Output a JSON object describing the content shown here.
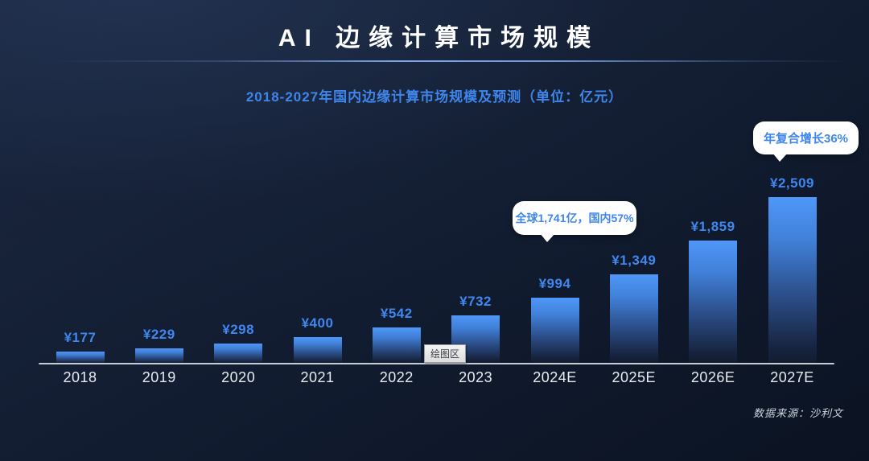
{
  "title": "AI 边缘计算市场规模",
  "subtitle": "2018-2027年国内边缘计算市场规模及预测（单位：亿元）",
  "source": "数据来源：沙利文",
  "plot_area_tooltip": "绘图区",
  "callouts": {
    "cagr": "年复合增长36%",
    "global_share": "全球1,741亿，国内57%"
  },
  "colors": {
    "background_top": "#1c2942",
    "background_bottom": "#0b1322",
    "accent_blue": "#3f86ec",
    "bar_gradient_top": "#4f97f8",
    "bar_gradient_bottom": "#121c30",
    "axis_line": "#c6ccd4",
    "year_label": "#e8ebf0",
    "callout_background": "#ffffff",
    "title_text": "#ffffff"
  },
  "chart_data": {
    "type": "bar",
    "title": "AI 边缘计算市场规模",
    "subtitle": "2018-2027年国内边缘计算市场规模及预测（单位：亿元）",
    "categories": [
      "2018",
      "2019",
      "2020",
      "2021",
      "2022",
      "2023",
      "2024E",
      "2025E",
      "2026E",
      "2027E"
    ],
    "values": [
      177,
      229,
      298,
      400,
      542,
      732,
      994,
      1349,
      1859,
      2509
    ],
    "value_labels": [
      "¥177",
      "¥229",
      "¥298",
      "¥400",
      "¥542",
      "¥732",
      "¥994",
      "¥1,349",
      "¥1,859",
      "¥2,509"
    ],
    "unit": "亿元",
    "xlabel": "",
    "ylabel": "",
    "ylim": [
      0,
      2600
    ],
    "grid": false,
    "legend": false,
    "annotations": [
      "年复合增长36%",
      "全球1,741亿，国内57%"
    ]
  }
}
